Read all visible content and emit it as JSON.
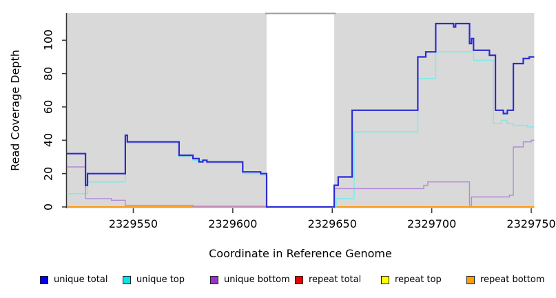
{
  "chart_data": {
    "type": "line",
    "style": "step-after",
    "title": "",
    "xlabel": "Coordinate in Reference Genome",
    "ylabel": "Read Coverage Depth",
    "xlim": [
      2329516.6,
      2329751.5
    ],
    "ylim": [
      0,
      116
    ],
    "x_ticks": [
      2329550,
      2329600,
      2329650,
      2329700,
      2329750
    ],
    "y_ticks": [
      0,
      20,
      40,
      60,
      80,
      100
    ],
    "grid": false,
    "legend_position": "bottom",
    "plot_background": "#ffffff",
    "shaded_regions": [
      {
        "x0": 2329516.6,
        "x1": 2329617,
        "color": "#d9d9d9"
      },
      {
        "x0": 2329651,
        "x1": 2329751.5,
        "color": "#d9d9d9"
      }
    ],
    "uncovered_gap": {
      "x0": 2329617,
      "x1": 2329651,
      "top_border_color": "#9e9e9e"
    },
    "axis_color": "#333333",
    "series": [
      {
        "name": "repeat total",
        "line_color": "#ee0000",
        "legend_color": "#ee0000",
        "width": 1.5,
        "points": [
          [
            2329516,
            0
          ]
        ]
      },
      {
        "name": "repeat top",
        "line_color": "#ffff00",
        "legend_color": "#ffff00",
        "width": 1.5,
        "points": [
          [
            2329516,
            0
          ]
        ]
      },
      {
        "name": "repeat bottom",
        "line_color": "#ff9912",
        "legend_color": "#ffa000",
        "width": 2,
        "points": [
          [
            2329516,
            0
          ]
        ]
      },
      {
        "name": "unique top",
        "line_color": "#7eebe6",
        "legend_color": "#00e5ee",
        "width": 1.6,
        "points": [
          [
            2329516,
            8
          ],
          [
            2329527,
            15
          ],
          [
            2329546,
            38
          ],
          [
            2329573,
            30
          ],
          [
            2329580,
            28
          ],
          [
            2329587,
            26
          ],
          [
            2329605,
            20
          ],
          [
            2329614,
            19
          ],
          [
            2329617,
            0
          ],
          [
            2329652,
            5
          ],
          [
            2329661,
            45
          ],
          [
            2329693,
            77
          ],
          [
            2329702,
            93
          ],
          [
            2329721,
            88
          ],
          [
            2329731,
            50
          ],
          [
            2329735,
            52
          ],
          [
            2329738,
            50
          ],
          [
            2329741,
            49
          ],
          [
            2329748,
            48
          ]
        ]
      },
      {
        "name": "unique bottom",
        "line_color": "#b388dc",
        "legend_color": "#9a32cd",
        "width": 1.4,
        "points": [
          [
            2329516,
            24
          ],
          [
            2329526,
            5
          ],
          [
            2329539,
            4
          ],
          [
            2329546,
            1
          ],
          [
            2329580,
            0.4
          ],
          [
            2329617,
            0
          ],
          [
            2329651,
            11
          ],
          [
            2329696,
            13
          ],
          [
            2329698,
            15
          ],
          [
            2329719,
            1
          ],
          [
            2329720,
            6
          ],
          [
            2329739,
            7
          ],
          [
            2329741,
            36
          ],
          [
            2329746,
            39
          ],
          [
            2329750,
            40
          ]
        ]
      },
      {
        "name": "unique total",
        "line_color": "#2b2bd5",
        "legend_color": "#0000ee",
        "width": 2.2,
        "points": [
          [
            2329516,
            32
          ],
          [
            2329526,
            13
          ],
          [
            2329527,
            20
          ],
          [
            2329546,
            43
          ],
          [
            2329547,
            39
          ],
          [
            2329573,
            31
          ],
          [
            2329580,
            29
          ],
          [
            2329583,
            27
          ],
          [
            2329585,
            28
          ],
          [
            2329587,
            27
          ],
          [
            2329605,
            21
          ],
          [
            2329614,
            20
          ],
          [
            2329617,
            0
          ],
          [
            2329651,
            13
          ],
          [
            2329653,
            18
          ],
          [
            2329660,
            58
          ],
          [
            2329693,
            90
          ],
          [
            2329697,
            93
          ],
          [
            2329702,
            110
          ],
          [
            2329711,
            108
          ],
          [
            2329712,
            110
          ],
          [
            2329719,
            98
          ],
          [
            2329720,
            101
          ],
          [
            2329721,
            94
          ],
          [
            2329729,
            91
          ],
          [
            2329732,
            58
          ],
          [
            2329736,
            56
          ],
          [
            2329738,
            58
          ],
          [
            2329741,
            86
          ],
          [
            2329746,
            89
          ],
          [
            2329749,
            90
          ]
        ]
      }
    ],
    "legend": [
      "unique total",
      "unique top",
      "unique bottom",
      "repeat total",
      "repeat top",
      "repeat bottom"
    ]
  }
}
